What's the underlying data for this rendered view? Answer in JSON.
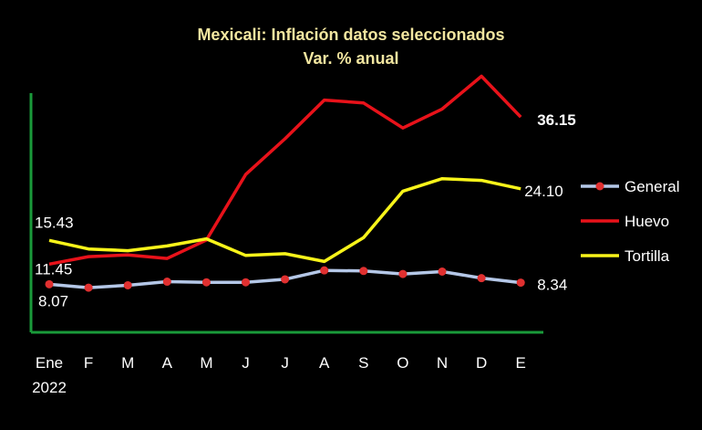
{
  "chart_data": {
    "type": "line",
    "title": "Mexicali: Inflación datos seleccionados",
    "subtitle": "Var. % anual",
    "categories": [
      "Ene",
      "F",
      "M",
      "A",
      "M",
      "J",
      "J",
      "A",
      "S",
      "O",
      "N",
      "D",
      "E"
    ],
    "category_sublabels": [
      "2022",
      "",
      "",
      "",
      "",
      "",
      "",
      "",
      "",
      "",
      "",
      "",
      ""
    ],
    "ylim": [
      0,
      42
    ],
    "grid": false,
    "legend_position": "right",
    "series": [
      {
        "name": "General",
        "color": "#b4c7e7",
        "marker_color": "#e03030",
        "values": [
          8.07,
          7.5,
          7.9,
          8.5,
          8.4,
          8.4,
          8.9,
          10.4,
          10.3,
          9.8,
          10.2,
          9.1,
          8.34
        ],
        "labels": {
          "0": "8.07",
          "12": "8.34"
        }
      },
      {
        "name": "Huevo",
        "color": "#e8121a",
        "values": [
          11.45,
          12.7,
          13.0,
          12.4,
          15.5,
          26.5,
          32.5,
          39.0,
          38.5,
          34.3,
          37.5,
          43.0,
          36.15
        ],
        "labels": {
          "0": "11.45",
          "12": "36.15"
        }
      },
      {
        "name": "Tortilla",
        "color": "#f8f41a",
        "values": [
          15.43,
          14.0,
          13.7,
          14.5,
          15.7,
          12.9,
          13.2,
          11.9,
          15.9,
          23.7,
          25.8,
          25.5,
          24.1
        ],
        "labels": {
          "0": "15.43",
          "12": "24.10"
        }
      }
    ]
  }
}
